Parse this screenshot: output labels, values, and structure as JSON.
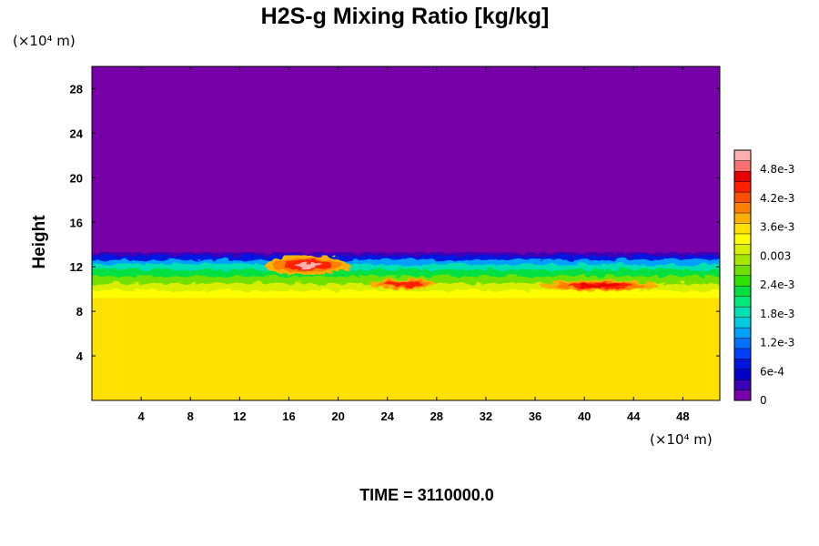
{
  "chart_data": {
    "type": "heatmap",
    "title": "H2S-g Mixing Ratio [kg/kg]",
    "ylabel": "Height",
    "x_unit_label": "(×10⁴ m)",
    "y_unit_label": "(×10⁴ m)",
    "time_label": "TIME = 3110000.0",
    "xlim": [
      0,
      51
    ],
    "ylim": [
      0,
      30
    ],
    "x_ticks": [
      "4",
      "8",
      "12",
      "16",
      "20",
      "24",
      "28",
      "32",
      "36",
      "40",
      "44",
      "48"
    ],
    "y_ticks": [
      "4",
      "8",
      "12",
      "16",
      "20",
      "24",
      "28"
    ],
    "colorbar": {
      "range": [
        0,
        0.0052
      ],
      "tick_values": [
        0,
        0.0006,
        0.0012,
        0.0018,
        0.0024,
        0.003,
        0.0036,
        0.0042,
        0.0048
      ],
      "tick_labels": [
        "0",
        "6e-4",
        "1.2e-3",
        "1.8e-3",
        "2.4e-3",
        "0.003",
        "3.6e-3",
        "4.2e-3",
        "4.8e-3"
      ],
      "colors": [
        "#7700a8",
        "#3a00b8",
        "#0000c8",
        "#0014e0",
        "#0040ff",
        "#0070ff",
        "#00a0ff",
        "#00cce0",
        "#00e0b0",
        "#00e878",
        "#00e040",
        "#30e000",
        "#70e000",
        "#a8e800",
        "#d8f000",
        "#ffff00",
        "#ffe000",
        "#ffb000",
        "#ff8000",
        "#ff5000",
        "#ff2000",
        "#e80000",
        "#ff7070",
        "#ffb0b0"
      ]
    },
    "field": {
      "background_value": 0,
      "lower_layer_value": 0.0035,
      "lower_layer_top_y": 9.2,
      "mixing_band_y": [
        9.2,
        13.3
      ],
      "hot_spots": [
        {
          "x_range": [
            14,
            21
          ],
          "y_range": [
            11.3,
            13.0
          ],
          "value": 0.005
        },
        {
          "x_range": [
            22.5,
            28
          ],
          "y_range": [
            10.0,
            10.9
          ],
          "value": 0.0044
        },
        {
          "x_range": [
            36.5,
            46
          ],
          "y_range": [
            9.8,
            10.8
          ],
          "value": 0.0046
        }
      ]
    }
  }
}
